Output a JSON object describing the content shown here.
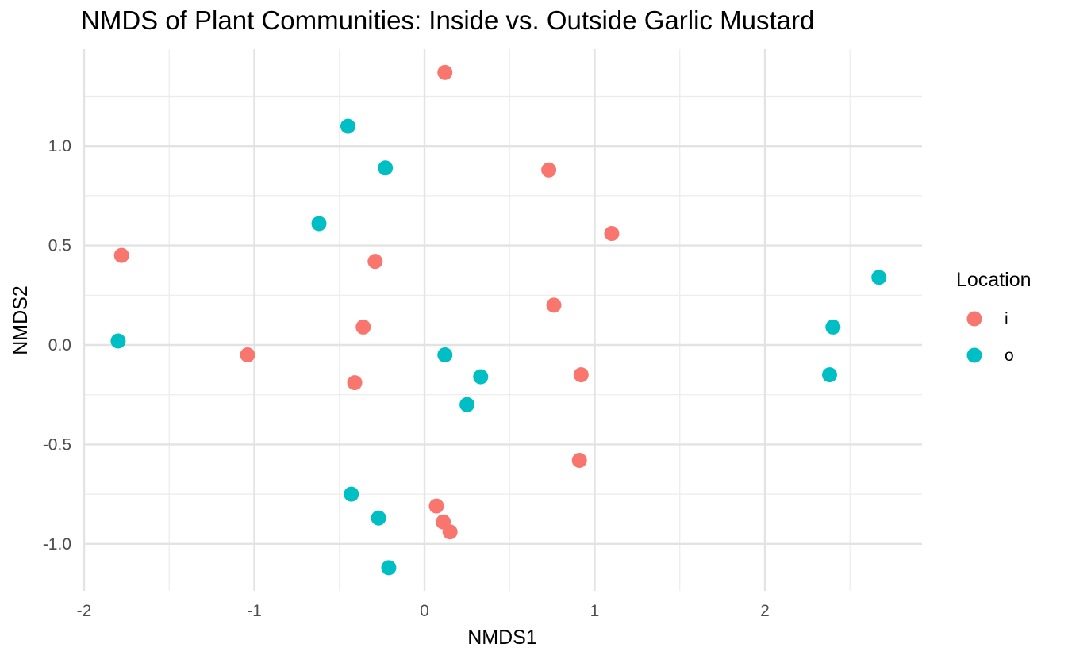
{
  "chart_data": {
    "type": "scatter",
    "title": "NMDS of Plant Communities: Inside vs. Outside Garlic Mustard",
    "xlabel": "NMDS1",
    "ylabel": "NMDS2",
    "xlim": [
      -2,
      2.9
    ],
    "ylim": [
      -1.2,
      1.45
    ],
    "x_ticks": [
      -2,
      -1,
      0,
      1,
      2
    ],
    "x_tick_labels": [
      "-2",
      "-1",
      "0",
      "1",
      "2"
    ],
    "y_ticks": [
      -1.0,
      -0.5,
      0.0,
      0.5,
      1.0
    ],
    "y_tick_labels": [
      "-1.0",
      "-0.5",
      "0.0",
      "0.5",
      "1.0"
    ],
    "grid": true,
    "legend": {
      "title": "Location",
      "position": "right"
    },
    "series": [
      {
        "name": "i",
        "color": "#F8766D",
        "points": [
          [
            0.12,
            1.37
          ],
          [
            0.73,
            0.88
          ],
          [
            1.1,
            0.56
          ],
          [
            -1.78,
            0.45
          ],
          [
            -0.29,
            0.42
          ],
          [
            0.76,
            0.2
          ],
          [
            -0.36,
            0.09
          ],
          [
            -1.04,
            -0.05
          ],
          [
            0.92,
            -0.15
          ],
          [
            -0.41,
            -0.19
          ],
          [
            0.91,
            -0.58
          ],
          [
            0.07,
            -0.81
          ],
          [
            0.11,
            -0.89
          ],
          [
            0.15,
            -0.94
          ]
        ]
      },
      {
        "name": "o",
        "color": "#00BFC4",
        "points": [
          [
            -0.45,
            1.1
          ],
          [
            -0.23,
            0.89
          ],
          [
            -0.62,
            0.61
          ],
          [
            2.67,
            0.34
          ],
          [
            -1.8,
            0.02
          ],
          [
            2.4,
            0.09
          ],
          [
            2.38,
            -0.15
          ],
          [
            0.12,
            -0.05
          ],
          [
            0.33,
            -0.16
          ],
          [
            0.25,
            -0.3
          ],
          [
            -0.43,
            -0.75
          ],
          [
            -0.27,
            -0.87
          ],
          [
            -0.21,
            -1.12
          ]
        ]
      }
    ]
  }
}
